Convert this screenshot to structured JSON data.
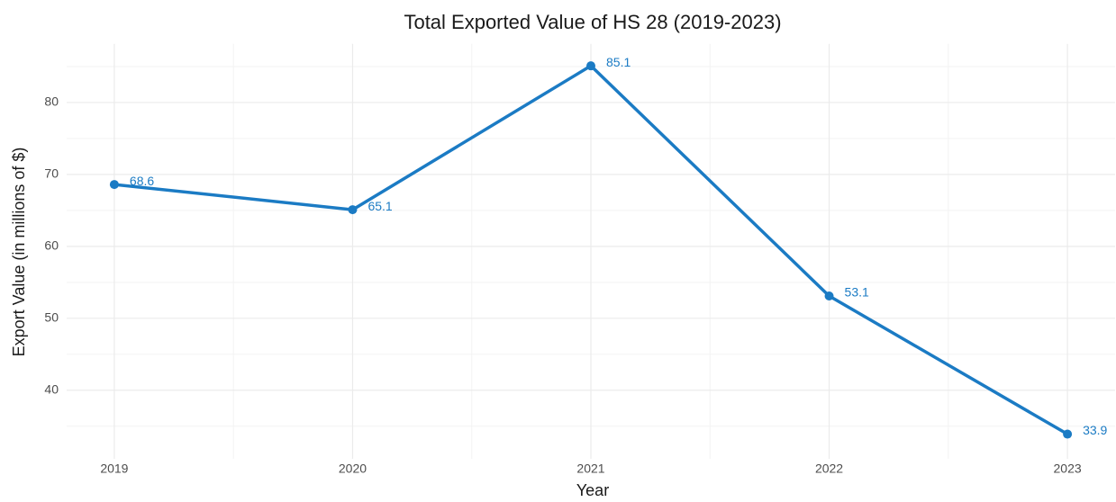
{
  "chart_data": {
    "type": "line",
    "title": "Total Exported Value of HS 28 (2019-2023)",
    "x_label": "Year",
    "y_label": "Export Value (in millions of $)",
    "x": [
      2019,
      2020,
      2021,
      2022,
      2023
    ],
    "series": [
      {
        "name": "Export Value",
        "color": "#1b7bc4",
        "values": [
          68.6,
          65.1,
          85.1,
          53.1,
          33.9
        ]
      }
    ],
    "xlim": [
      2018.8,
      2023.2
    ],
    "xticks": [
      2019,
      2020,
      2021,
      2022,
      2023
    ],
    "ylim": [
      31.34,
      87.66
    ],
    "yticks": [
      40,
      50,
      60,
      70,
      80
    ],
    "grid": true
  }
}
